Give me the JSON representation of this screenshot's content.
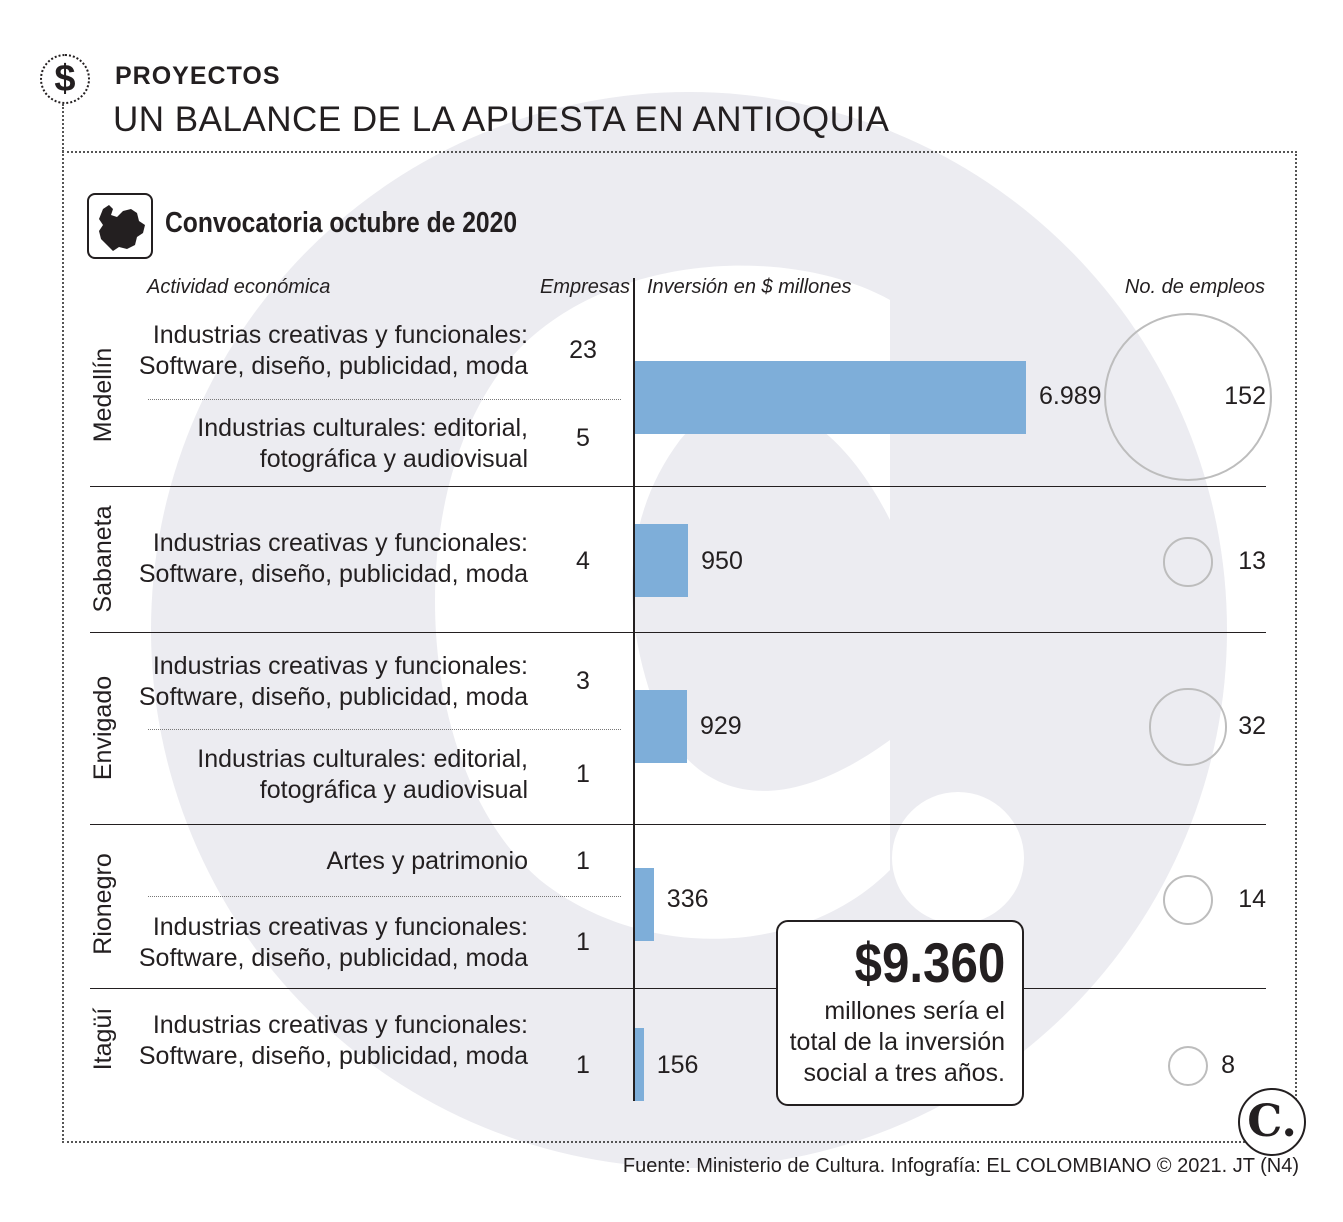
{
  "header": {
    "icon": "dollar-icon",
    "kicker": "PROYECTOS",
    "title": "UN BALANCE DE LA APUESTA EN ANTIOQUIA"
  },
  "subtitle": "Convocatoria octubre de 2020",
  "columns": {
    "activity": "Actividad económica",
    "companies": "Empresas",
    "investment": "Inversión en $ millones",
    "jobs": "No.  de empleos"
  },
  "colors": {
    "bar": "#7eaed9",
    "bar_light": "#a9cdee",
    "circle": "#bdbdbd",
    "watermark": "#ececf1"
  },
  "chart_data": {
    "type": "bar",
    "orientation": "horizontal",
    "title": "Convocatoria octubre de 2020",
    "xlabel": "Inversión en $ millones",
    "categories": [
      "Medellín",
      "Sabaneta",
      "Envigado",
      "Rionegro",
      "Itagüí"
    ],
    "values": [
      6989,
      950,
      929,
      336,
      156
    ],
    "value_labels": [
      "6.989",
      "950",
      "929",
      "336",
      "156"
    ],
    "jobs": [
      152,
      13,
      32,
      14,
      8
    ],
    "jobs_labels": [
      "152",
      "13",
      "32",
      "14",
      "8"
    ],
    "xlim": [
      0,
      7000
    ],
    "groups": [
      {
        "city": "Medellín",
        "activities": [
          {
            "lines": [
              "Industrias creativas y funcionales:",
              "Software, diseño, publicidad, moda"
            ],
            "companies": "23"
          },
          {
            "lines": [
              "Industrias culturales: editorial,",
              "fotográfica y audiovisual"
            ],
            "companies": "5"
          }
        ]
      },
      {
        "city": "Sabaneta",
        "activities": [
          {
            "lines": [
              "Industrias creativas y funcionales:",
              "Software, diseño, publicidad, moda"
            ],
            "companies": "4"
          }
        ]
      },
      {
        "city": "Envigado",
        "activities": [
          {
            "lines": [
              "Industrias creativas y funcionales:",
              "Software, diseño, publicidad, moda"
            ],
            "companies": "3"
          },
          {
            "lines": [
              "Industrias culturales: editorial,",
              "fotográfica y audiovisual"
            ],
            "companies": "1"
          }
        ]
      },
      {
        "city": "Rionegro",
        "activities": [
          {
            "lines": [
              "Artes y patrimonio"
            ],
            "companies": "1"
          },
          {
            "lines": [
              "Industrias creativas y funcionales:",
              "Software, diseño, publicidad, moda"
            ],
            "companies": "1"
          }
        ]
      },
      {
        "city": "Itagüí",
        "activities": [
          {
            "lines": [
              "Industrias creativas y funcionales:",
              "Software, diseño, publicidad, moda"
            ],
            "companies": "1"
          }
        ]
      }
    ]
  },
  "total": {
    "amount": "$9.360",
    "text_lines": [
      "millones sería el",
      "total de la inversión",
      "social a tres años."
    ]
  },
  "logo": "C.",
  "source": "Fuente: Ministerio de Cultura. Infografía: EL COLOMBIANO © 2021. JT (N4)"
}
